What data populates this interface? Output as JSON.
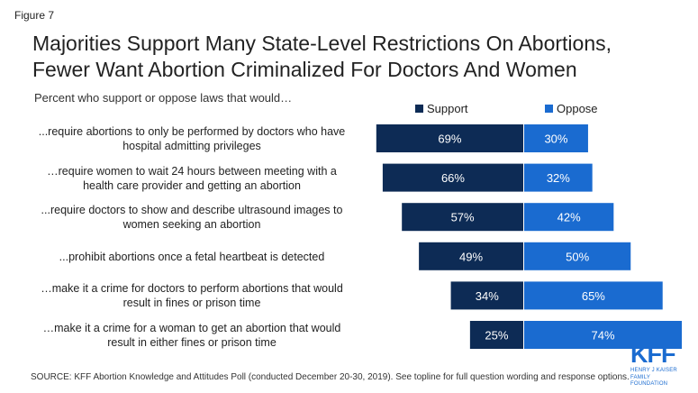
{
  "figure_label": "Figure 7",
  "title_line1": "Majorities Support Many State-Level Restrictions On Abortions,",
  "title_line2": "Fewer Want Abortion Criminalized For Doctors And Women",
  "subtitle": "Percent who support or oppose laws that would…",
  "legend": {
    "support": "Support",
    "oppose": "Oppose"
  },
  "colors": {
    "support": "#0d2b55",
    "oppose": "#1a6bd0",
    "label_text": "#ffffff"
  },
  "source": "SOURCE: KFF Abortion Knowledge and Attitudes Poll (conducted December 20-30, 2019). See topline for full question wording and response options.",
  "logo": {
    "word": "KFF",
    "line1": "HENRY J KAISER",
    "line2": "FAMILY FOUNDATION"
  },
  "rows": [
    {
      "line1": "...require abortions to only be performed by doctors who have",
      "line2": "hospital admitting privileges"
    },
    {
      "line1": "…require women to wait 24 hours between meeting with a",
      "line2": "health care provider and getting an abortion"
    },
    {
      "line1": "...require doctors to show and describe ultrasound images to",
      "line2": "women seeking an abortion"
    },
    {
      "line1": "...prohibit abortions once a fetal heartbeat is detected",
      "line2": ""
    },
    {
      "line1": "…make it a crime for doctors to perform abortions that would",
      "line2": "result in fines or prison time"
    },
    {
      "line1": "…make it a crime for a woman to get an abortion that would",
      "line2": "result in either fines or prison time"
    }
  ],
  "chart_data": {
    "type": "bar",
    "orientation": "horizontal-diverging",
    "categories": [
      "...require abortions to only be performed by doctors who have hospital admitting privileges",
      "…require women to wait 24 hours between meeting with a health care provider and getting an abortion",
      "...require doctors to show and describe ultrasound images to women seeking an abortion",
      "...prohibit abortions once a fetal heartbeat is detected",
      "…make it a crime for doctors to perform abortions that would result in fines or prison time",
      "…make it a crime for a woman to get an abortion that would result in either fines or prison time"
    ],
    "series": [
      {
        "name": "Support",
        "values": [
          69,
          66,
          57,
          49,
          34,
          25
        ],
        "labels": [
          "69%",
          "66%",
          "57%",
          "49%",
          "34%",
          "25%"
        ]
      },
      {
        "name": "Oppose",
        "values": [
          30,
          32,
          42,
          50,
          65,
          74
        ],
        "labels": [
          "30%",
          "32%",
          "42%",
          "50%",
          "65%",
          "74%"
        ]
      }
    ],
    "legend_position": "top",
    "grid": false
  }
}
